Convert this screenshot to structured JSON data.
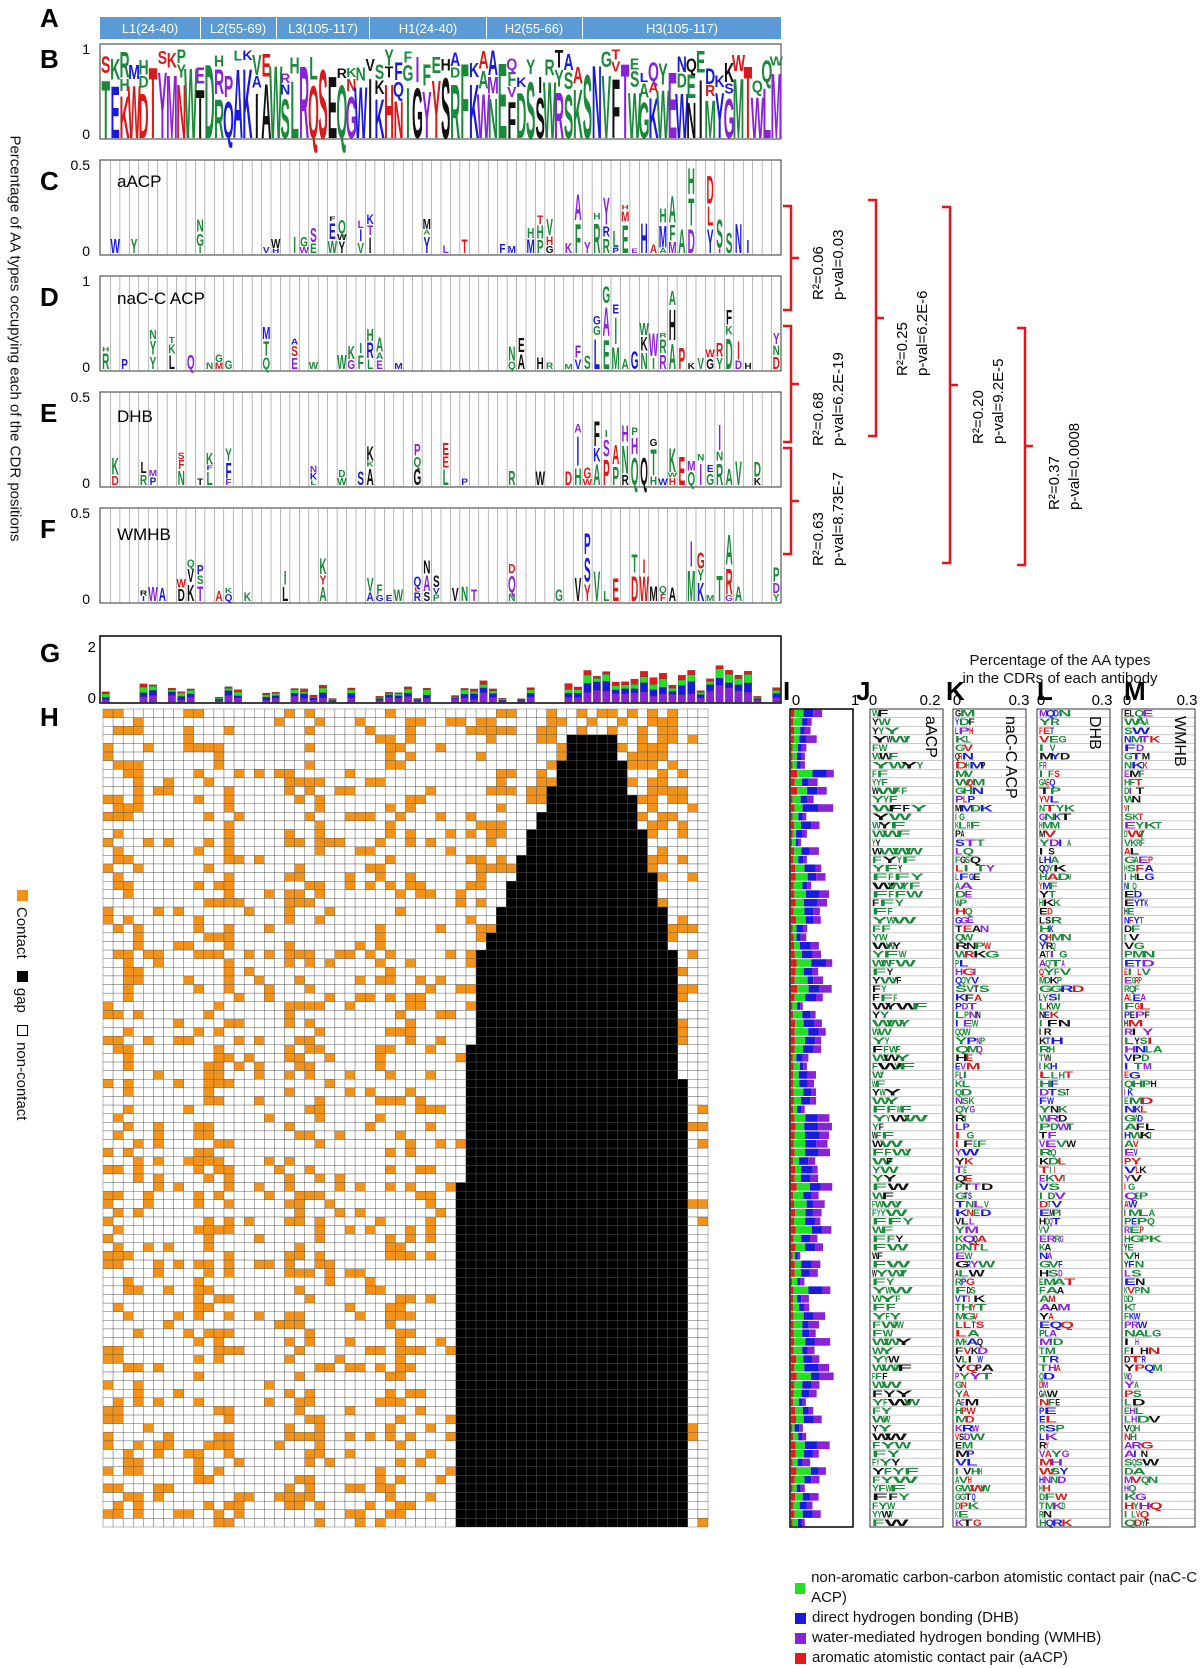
{
  "panel_labels": [
    "A",
    "B",
    "C",
    "D",
    "E",
    "F",
    "G",
    "H",
    "I",
    "J",
    "K",
    "L",
    "M"
  ],
  "cdr_regions": [
    "L1(24-40)",
    "L2(55-69)",
    "L3(105-117)",
    "H1(24-40)",
    "H2(55-66)",
    "H3(105-117)"
  ],
  "y_axis_title": "Percentage of AA types occupying each of the  CDR positions",
  "right_panel_title_line1": "Percentage of the AA types",
  "right_panel_title_line2": "in the CDRs of each antibody",
  "side_legend": {
    "contact": "Contact",
    "gap": "gap",
    "noncontact": "non-contact"
  },
  "colors": {
    "header_blue": "#5b9bd5",
    "contact": "#f39218",
    "gap": "#000000",
    "naC": "#22e022",
    "dhb": "#1a1adc",
    "wmhb": "#8a22d8",
    "aacp": "#e41a1a",
    "bracket": "#e8141c"
  },
  "chart_data": [
    {
      "type": "sequence-logo",
      "panel": "B",
      "yticks": [
        "1",
        "0"
      ],
      "ylim": [
        0,
        1
      ]
    },
    {
      "type": "sequence-logo",
      "panel": "C",
      "name": "aACP",
      "yticks": [
        "0.5",
        "0"
      ],
      "ylim": [
        0,
        0.5
      ]
    },
    {
      "type": "sequence-logo",
      "panel": "D",
      "name": "naC-C ACP",
      "yticks": [
        "1",
        "0"
      ],
      "ylim": [
        0,
        1
      ]
    },
    {
      "type": "sequence-logo",
      "panel": "E",
      "name": "DHB",
      "yticks": [
        "0.5",
        "0"
      ],
      "ylim": [
        0,
        0.5
      ]
    },
    {
      "type": "sequence-logo",
      "panel": "F",
      "name": "WMHB",
      "yticks": [
        "0.5",
        "0"
      ],
      "ylim": [
        0,
        0.5
      ]
    },
    {
      "type": "bar",
      "panel": "G",
      "stacked": true,
      "yticks": [
        "2",
        "0"
      ],
      "ylim": [
        0,
        2
      ]
    },
    {
      "type": "heatmap",
      "panel": "H",
      "legend": [
        "Contact",
        "gap",
        "non-contact"
      ]
    },
    {
      "type": "bar",
      "panel": "I",
      "orientation": "horizontal",
      "stacked": true,
      "xticks": [
        "0",
        "1"
      ],
      "xlim": [
        0,
        1
      ]
    },
    {
      "type": "sequence-logo",
      "panel": "J",
      "name": "aACP",
      "xticks": [
        "0",
        "0.2"
      ],
      "xlim": [
        0,
        0.2
      ]
    },
    {
      "type": "sequence-logo",
      "panel": "K",
      "name": "naC-C ACP",
      "xticks": [
        "0",
        "0.3"
      ],
      "xlim": [
        0,
        0.3
      ]
    },
    {
      "type": "sequence-logo",
      "panel": "L",
      "name": "DHB",
      "xticks": [
        "0",
        "0.3"
      ],
      "xlim": [
        0,
        0.3
      ]
    },
    {
      "type": "sequence-logo",
      "panel": "M",
      "name": "WMHB",
      "xticks": [
        "0",
        "0.3"
      ],
      "xlim": [
        0,
        0.3
      ]
    },
    {
      "type": "table",
      "panel": "correlations",
      "rows": [
        {
          "r2": "R²=0.06",
          "p": "p-val=0.03"
        },
        {
          "r2": "R²=0.68",
          "p": "p-val=6.2E-19"
        },
        {
          "r2": "R²=0.63",
          "p": "p-val=8.73E-7"
        },
        {
          "r2": "R²=0.25",
          "p": "p-val=6.2E-6"
        },
        {
          "r2": "R²=0.20",
          "p": "p-val=9.2E-5"
        },
        {
          "r2": "R²=0.37",
          "p": "p-val=0.0008"
        }
      ]
    }
  ],
  "legend": [
    {
      "label": "non-aromatic carbon-carbon atomistic contact pair (naC-C ACP)",
      "color": "#22e022"
    },
    {
      "label": "direct hydrogen bonding (DHB)",
      "color": "#1a1adc"
    },
    {
      "label": "water-mediated hydrogen bonding (WMHB)",
      "color": "#8a22d8"
    },
    {
      "label": "aromatic atomistic contact pair (aACP)",
      "color": "#e41a1a"
    }
  ]
}
